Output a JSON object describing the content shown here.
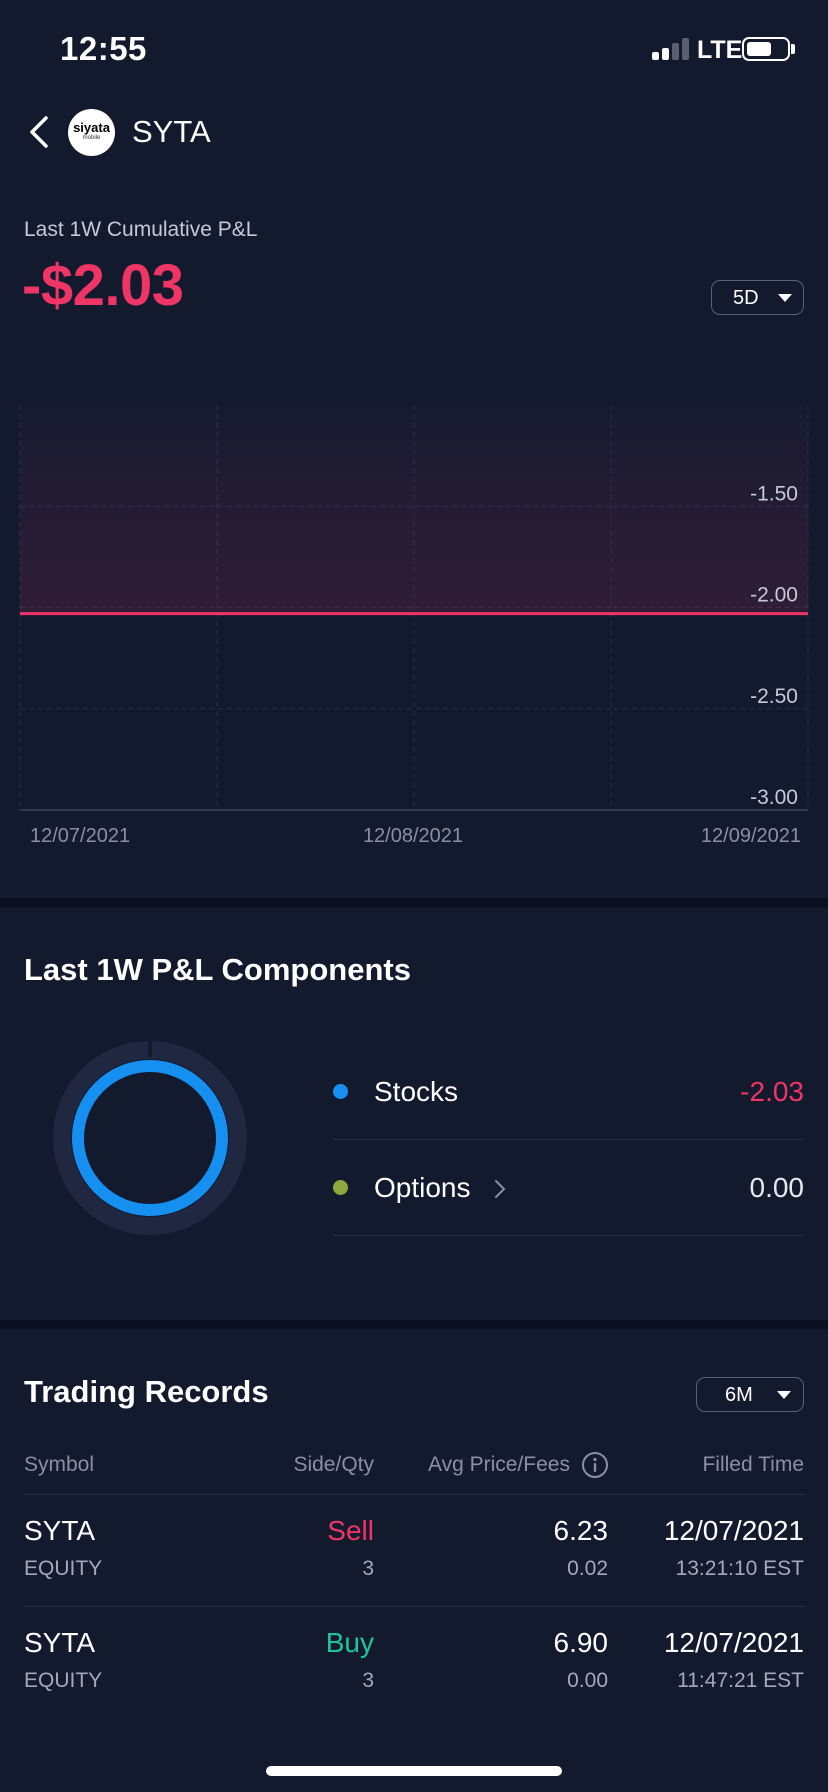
{
  "status_bar": {
    "time": "12:55",
    "network": "LTE"
  },
  "nav": {
    "ticker": "SYTA",
    "logo_text": "siyata",
    "logo_sub": "mobile"
  },
  "pnl": {
    "label": "Last 1W Cumulative P&L",
    "value": "-$2.03",
    "range": "5D"
  },
  "chart_data": {
    "type": "area",
    "x": [
      "12/07/2021",
      "12/08/2021",
      "12/09/2021"
    ],
    "series": [
      {
        "values": [
          -2.03,
          -2.03,
          -2.03
        ]
      }
    ],
    "y_ticks": [
      "-1.50",
      "-2.00",
      "-2.50",
      "-3.00"
    ],
    "ylim": [
      -3.0,
      -1.0
    ],
    "grid": true,
    "line_color": "#ef3566"
  },
  "components": {
    "title": "Last 1W P&L Components",
    "items": [
      {
        "name": "Stocks",
        "value": "-2.03",
        "dot_color": "#1690f0",
        "value_color": "#ef3566",
        "has_chevron": false,
        "share": 1.0
      },
      {
        "name": "Options",
        "value": "0.00",
        "dot_color": "#8ea83c",
        "value_color": "#e6e8ee",
        "has_chevron": true,
        "share": 0.0
      }
    ]
  },
  "records": {
    "title": "Trading Records",
    "range": "6M",
    "headers": {
      "symbol": "Symbol",
      "side_qty": "Side/Qty",
      "avg_price_fees": "Avg Price/Fees",
      "filled_time": "Filled Time"
    },
    "rows": [
      {
        "symbol": "SYTA",
        "type": "EQUITY",
        "side": "Sell",
        "qty": "3",
        "price": "6.23",
        "fees": "0.02",
        "date": "12/07/2021",
        "time": "13:21:10 EST",
        "side_color": "#ef3566"
      },
      {
        "symbol": "SYTA",
        "type": "EQUITY",
        "side": "Buy",
        "qty": "3",
        "price": "6.90",
        "fees": "0.00",
        "date": "12/07/2021",
        "time": "11:47:21 EST",
        "side_color": "#1fc39a"
      }
    ]
  },
  "colors": {
    "background": "#131a2e",
    "negative": "#ef3566",
    "positive": "#1fc39a",
    "accent": "#1690f0"
  }
}
